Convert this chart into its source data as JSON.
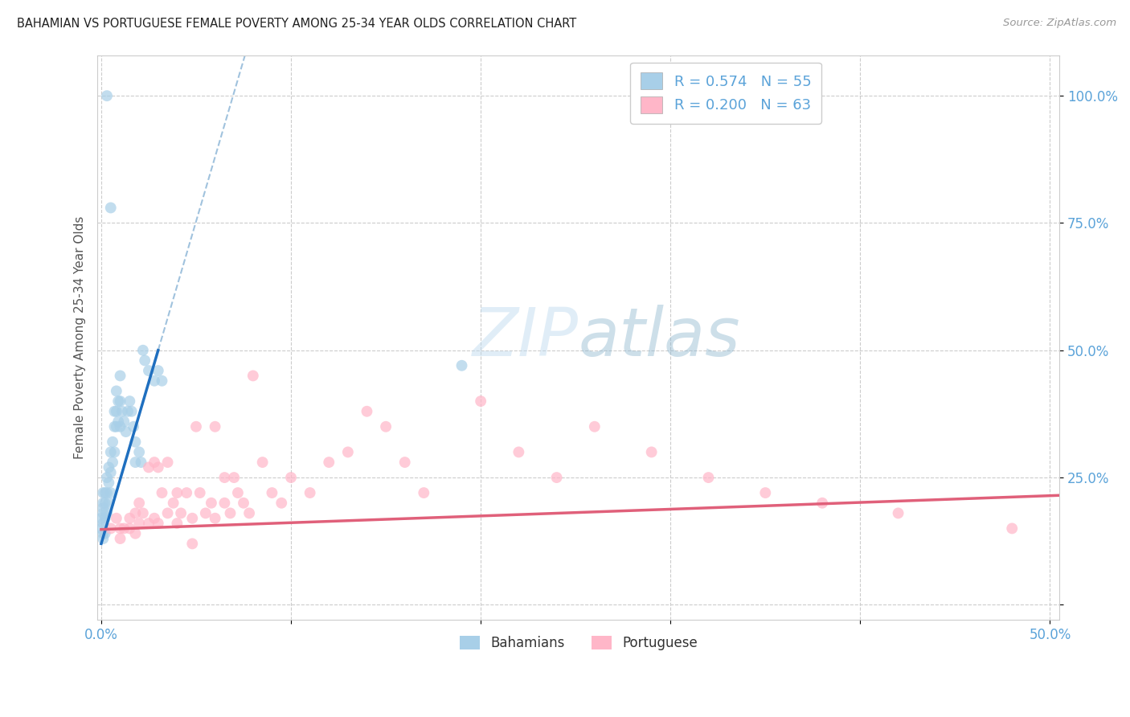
{
  "title": "BAHAMIAN VS PORTUGUESE FEMALE POVERTY AMONG 25-34 YEAR OLDS CORRELATION CHART",
  "source": "Source: ZipAtlas.com",
  "ylabel": "Female Poverty Among 25-34 Year Olds",
  "xlim": [
    -0.002,
    0.505
  ],
  "ylim": [
    -0.03,
    1.08
  ],
  "bahamian_color": "#a8cfe8",
  "bahamian_line_color": "#1f6fbf",
  "portuguese_color": "#ffb6c8",
  "portuguese_line_color": "#e0607a",
  "dash_color": "#90b8d8",
  "legend_bahamian_R": "0.574",
  "legend_bahamian_N": "55",
  "legend_portuguese_R": "0.200",
  "legend_portuguese_N": "63",
  "watermark_color": "#cce4f5",
  "grid_color": "#cccccc",
  "tick_color": "#5ba3d9",
  "title_color": "#222222",
  "ylabel_color": "#555555",
  "source_color": "#999999",
  "bahamian_x": [
    0.003,
    0.005,
    0.0,
    0.0,
    0.001,
    0.001,
    0.001,
    0.001,
    0.001,
    0.001,
    0.001,
    0.002,
    0.002,
    0.002,
    0.002,
    0.003,
    0.003,
    0.003,
    0.004,
    0.004,
    0.004,
    0.005,
    0.005,
    0.005,
    0.006,
    0.006,
    0.007,
    0.007,
    0.007,
    0.008,
    0.008,
    0.008,
    0.009,
    0.009,
    0.01,
    0.01,
    0.01,
    0.011,
    0.012,
    0.013,
    0.014,
    0.015,
    0.016,
    0.017,
    0.018,
    0.018,
    0.02,
    0.021,
    0.022,
    0.023,
    0.025,
    0.028,
    0.03,
    0.032,
    0.19
  ],
  "bahamian_y": [
    1.0,
    0.78,
    0.17,
    0.15,
    0.22,
    0.2,
    0.19,
    0.18,
    0.16,
    0.14,
    0.13,
    0.22,
    0.2,
    0.17,
    0.14,
    0.25,
    0.22,
    0.18,
    0.27,
    0.24,
    0.2,
    0.3,
    0.26,
    0.22,
    0.32,
    0.28,
    0.38,
    0.35,
    0.3,
    0.42,
    0.38,
    0.35,
    0.4,
    0.36,
    0.45,
    0.4,
    0.35,
    0.38,
    0.36,
    0.34,
    0.38,
    0.4,
    0.38,
    0.35,
    0.32,
    0.28,
    0.3,
    0.28,
    0.5,
    0.48,
    0.46,
    0.44,
    0.46,
    0.44,
    0.47
  ],
  "portuguese_x": [
    0.005,
    0.008,
    0.01,
    0.01,
    0.012,
    0.015,
    0.015,
    0.018,
    0.018,
    0.02,
    0.02,
    0.022,
    0.025,
    0.025,
    0.028,
    0.028,
    0.03,
    0.03,
    0.032,
    0.035,
    0.035,
    0.038,
    0.04,
    0.04,
    0.042,
    0.045,
    0.048,
    0.048,
    0.05,
    0.052,
    0.055,
    0.058,
    0.06,
    0.06,
    0.065,
    0.065,
    0.068,
    0.07,
    0.072,
    0.075,
    0.078,
    0.08,
    0.085,
    0.09,
    0.095,
    0.1,
    0.11,
    0.12,
    0.13,
    0.14,
    0.15,
    0.16,
    0.17,
    0.2,
    0.22,
    0.24,
    0.26,
    0.29,
    0.32,
    0.35,
    0.38,
    0.42,
    0.48
  ],
  "portuguese_y": [
    0.15,
    0.17,
    0.15,
    0.13,
    0.15,
    0.17,
    0.15,
    0.18,
    0.14,
    0.2,
    0.16,
    0.18,
    0.27,
    0.16,
    0.28,
    0.17,
    0.27,
    0.16,
    0.22,
    0.28,
    0.18,
    0.2,
    0.22,
    0.16,
    0.18,
    0.22,
    0.17,
    0.12,
    0.35,
    0.22,
    0.18,
    0.2,
    0.35,
    0.17,
    0.25,
    0.2,
    0.18,
    0.25,
    0.22,
    0.2,
    0.18,
    0.45,
    0.28,
    0.22,
    0.2,
    0.25,
    0.22,
    0.28,
    0.3,
    0.38,
    0.35,
    0.28,
    0.22,
    0.4,
    0.3,
    0.25,
    0.35,
    0.3,
    0.25,
    0.22,
    0.2,
    0.18,
    0.15
  ]
}
